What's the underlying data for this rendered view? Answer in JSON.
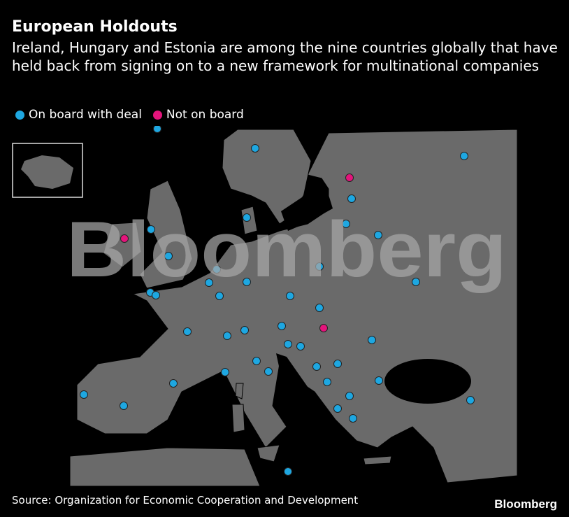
{
  "header": {
    "title": "European Holdouts",
    "subtitle": "Ireland, Hungary and Estonia are among the nine countries globally that have held back from signing on to a new framework for multinational companies"
  },
  "legend": {
    "items": [
      {
        "label": "On board with deal",
        "color": "#1ea7e1"
      },
      {
        "label": "Not on board",
        "color": "#e4147c"
      }
    ]
  },
  "watermark": "Bloomberg",
  "footer": {
    "source": "Source: Organization for Economic Cooperation and Development",
    "logo": "Bloomberg"
  }
}
